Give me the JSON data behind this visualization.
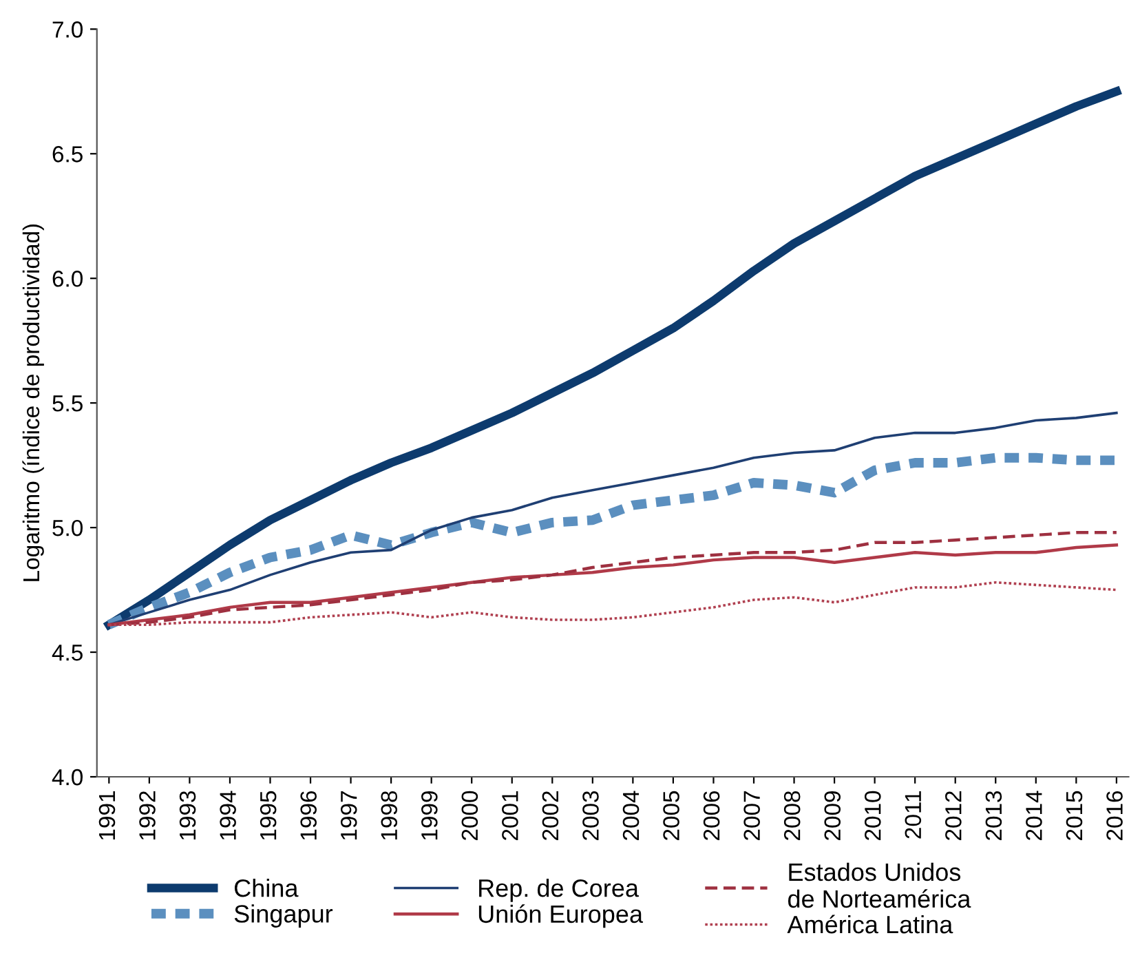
{
  "chart_data": {
    "type": "line",
    "ylabel": "Logaritmo (índice de productividad)",
    "categories": [
      "1991",
      "1992",
      "1993",
      "1994",
      "1995",
      "1996",
      "1997",
      "1998",
      "1999",
      "2000",
      "2001",
      "2002",
      "2003",
      "2004",
      "2005",
      "2006",
      "2007",
      "2008",
      "2009",
      "2010",
      "2011",
      "2012",
      "2013",
      "2014",
      "2015",
      "2016"
    ],
    "ylim": [
      4.0,
      7.0
    ],
    "yticks": [
      {
        "value": 4.0,
        "label": "4.0"
      },
      {
        "value": 4.5,
        "label": "4.5"
      },
      {
        "value": 5.0,
        "label": "5.0"
      },
      {
        "value": 5.5,
        "label": "5.5"
      },
      {
        "value": 6.0,
        "label": "6.0"
      },
      {
        "value": 6.5,
        "label": "6.5"
      },
      {
        "value": 7.0,
        "label": "7.0"
      }
    ],
    "grid": false,
    "legend": "bottom",
    "marker": "none",
    "series": [
      {
        "name": "China",
        "color": "#0d3b6e",
        "line_style": "solid",
        "values": [
          4.61,
          4.71,
          4.82,
          4.93,
          5.03,
          5.11,
          5.19,
          5.26,
          5.32,
          5.39,
          5.46,
          5.54,
          5.62,
          5.71,
          5.8,
          5.91,
          6.03,
          6.14,
          6.23,
          6.32,
          6.41,
          6.48,
          6.55,
          6.62,
          6.69,
          6.75
        ]
      },
      {
        "name": "Singapur",
        "color": "#5b8fbf",
        "line_style": "dotted",
        "values": [
          4.61,
          4.68,
          4.74,
          4.82,
          4.88,
          4.91,
          4.97,
          4.93,
          4.98,
          5.02,
          4.98,
          5.02,
          5.03,
          5.09,
          5.11,
          5.13,
          5.18,
          5.17,
          5.14,
          5.23,
          5.26,
          5.26,
          5.28,
          5.28,
          5.27,
          5.27
        ]
      },
      {
        "name": "Rep. de Corea",
        "color": "#1f3f73",
        "line_style": "solid",
        "values": [
          4.61,
          4.66,
          4.71,
          4.75,
          4.81,
          4.86,
          4.9,
          4.91,
          4.99,
          5.04,
          5.07,
          5.12,
          5.15,
          5.18,
          5.21,
          5.24,
          5.28,
          5.3,
          5.31,
          5.36,
          5.38,
          5.38,
          5.4,
          5.43,
          5.44,
          5.46
        ]
      },
      {
        "name": "Unión Europea",
        "color": "#b03a48",
        "line_style": "solid",
        "values": [
          4.61,
          4.63,
          4.65,
          4.68,
          4.7,
          4.7,
          4.72,
          4.74,
          4.76,
          4.78,
          4.8,
          4.81,
          4.82,
          4.84,
          4.85,
          4.87,
          4.88,
          4.88,
          4.86,
          4.88,
          4.9,
          4.89,
          4.9,
          4.9,
          4.92,
          4.93
        ]
      },
      {
        "name": "Estados Unidos\nde Norteamérica",
        "color": "#9e3040",
        "line_style": "dashed",
        "values": [
          4.61,
          4.62,
          4.64,
          4.67,
          4.68,
          4.69,
          4.71,
          4.73,
          4.75,
          4.78,
          4.79,
          4.81,
          4.84,
          4.86,
          4.88,
          4.89,
          4.9,
          4.9,
          4.91,
          4.94,
          4.94,
          4.95,
          4.96,
          4.97,
          4.98,
          4.98
        ]
      },
      {
        "name": "América Latina",
        "color": "#b04050",
        "line_style": "dotted",
        "values": [
          4.61,
          4.61,
          4.62,
          4.62,
          4.62,
          4.64,
          4.65,
          4.66,
          4.64,
          4.66,
          4.64,
          4.63,
          4.63,
          4.64,
          4.66,
          4.68,
          4.71,
          4.72,
          4.7,
          4.73,
          4.76,
          4.76,
          4.78,
          4.77,
          4.76,
          4.75
        ]
      }
    ]
  }
}
